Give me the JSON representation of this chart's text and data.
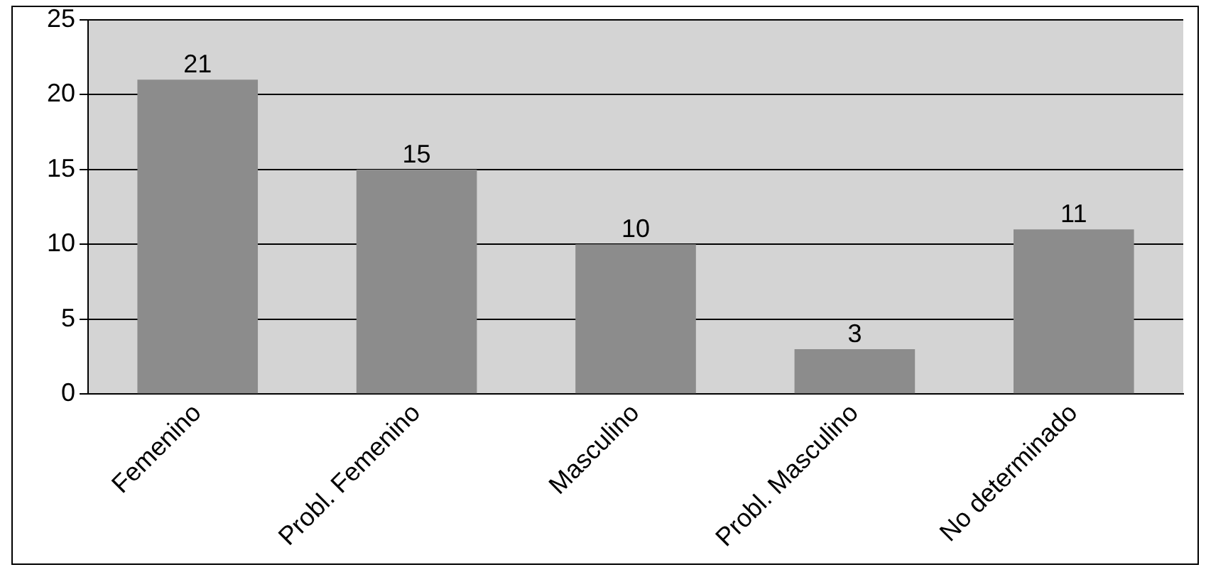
{
  "chart_data": {
    "type": "bar",
    "categories": [
      "Femenino",
      "Probl. Femenino",
      "Masculino",
      "Probl. Masculino",
      "No determinado"
    ],
    "values": [
      21,
      15,
      10,
      3,
      11
    ],
    "color": "#8c8c8c",
    "ylim": [
      0,
      25
    ],
    "yticks": [
      0,
      5,
      10,
      15,
      20,
      25
    ],
    "grid": "y",
    "data_labels": true,
    "legend": false
  }
}
